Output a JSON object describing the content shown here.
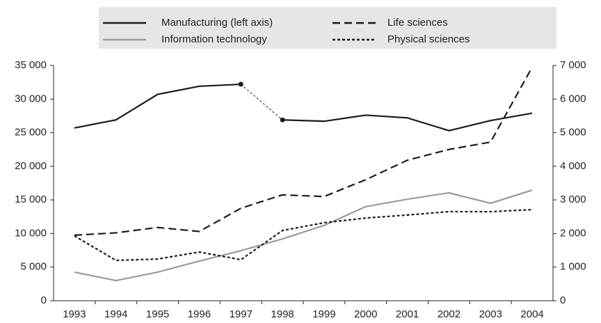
{
  "chart_data": {
    "type": "line",
    "categories": [
      "1993",
      "1994",
      "1995",
      "1996",
      "1997",
      "1998",
      "1999",
      "2000",
      "2001",
      "2002",
      "2003",
      "2004"
    ],
    "series": [
      {
        "name": "Manufacturing (left axis)",
        "color": "#1a1a1a",
        "dash": "solid",
        "axis": "y",
        "break_after": "1997",
        "values": [
          25700,
          26900,
          30700,
          31900,
          32200,
          26900,
          26700,
          27600,
          27200,
          25300,
          26800,
          27900
        ]
      },
      {
        "name": "Information technology",
        "color": "#9a9a9a",
        "dash": "solid",
        "axis": "y2",
        "values": [
          850,
          600,
          850,
          1180,
          1490,
          1840,
          2240,
          2800,
          3020,
          3210,
          2900,
          3290
        ]
      },
      {
        "name": "Life sciences",
        "color": "#1a1a1a",
        "dash": "dashed",
        "axis": "y2",
        "values": [
          1950,
          2020,
          2180,
          2060,
          2750,
          3150,
          3100,
          3600,
          4180,
          4500,
          4720,
          6950
        ]
      },
      {
        "name": "Physical sciences",
        "color": "#1a1a1a",
        "dash": "dotted",
        "axis": "y2",
        "values": [
          1930,
          1200,
          1240,
          1450,
          1220,
          2090,
          2320,
          2460,
          2550,
          2650,
          2650,
          2710
        ]
      }
    ],
    "ylim": [
      0,
      35000
    ],
    "yticks": [
      0,
      {
        "value": 5000,
        "label": "5 000"
      },
      {
        "value": 10000,
        "label": "10 000"
      },
      {
        "value": 15000,
        "label": "15 000"
      },
      {
        "value": 20000,
        "label": "20 000"
      },
      {
        "value": 25000,
        "label": "25 000"
      },
      {
        "value": 30000,
        "label": "30 000"
      },
      {
        "value": 35000,
        "label": "35 000"
      }
    ],
    "y2lim": [
      0,
      7000
    ],
    "y2ticks": [
      0,
      {
        "value": 1000,
        "label": "1 000"
      },
      {
        "value": 2000,
        "label": "2 000"
      },
      {
        "value": 3000,
        "label": "3 000"
      },
      {
        "value": 4000,
        "label": "4 000"
      },
      {
        "value": 5000,
        "label": "5 000"
      },
      {
        "value": 6000,
        "label": "6 000"
      },
      {
        "value": 7000,
        "label": "7 000"
      }
    ],
    "grid": false,
    "legend": "top"
  }
}
